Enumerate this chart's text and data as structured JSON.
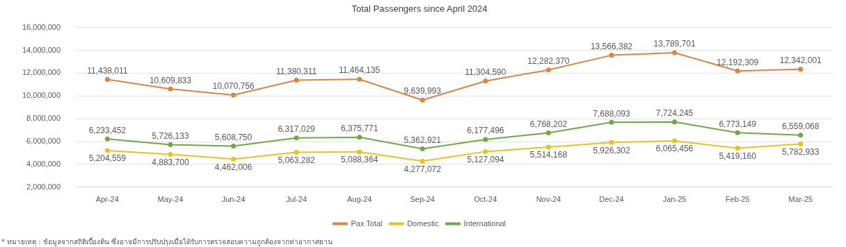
{
  "chart_data": {
    "type": "line",
    "title": "Total Passengers since April 2024",
    "categories": [
      "Apr-24",
      "May-24",
      "Jun-24",
      "Jul-24",
      "Aug-24",
      "Sep-24",
      "Oct-24",
      "Nov-24",
      "Dec-24",
      "Jan-25",
      "Feb-25",
      "Mar-25"
    ],
    "series": [
      {
        "name": "Pax Total",
        "color": "#dd8444",
        "values": [
          11438011,
          10609833,
          10070756,
          11380311,
          11464135,
          9639993,
          11304590,
          12282370,
          13566382,
          13789701,
          12192309,
          12342001
        ],
        "value_labels": [
          "11,438,011",
          "10,609,833",
          "10,070,756",
          "11,380,311",
          "11,464,135",
          "9,639,993",
          "11,304,590",
          "12,282,370",
          "13,566,382",
          "13,789,701",
          "12,192,309",
          "12,342,001"
        ]
      },
      {
        "name": "Domestic",
        "color": "#e8c21f",
        "values": [
          5204559,
          4883700,
          4462006,
          5063282,
          5088364,
          4277072,
          5127094,
          5514168,
          5926302,
          6065456,
          5419160,
          5782933
        ],
        "value_labels": [
          "5,204,559",
          "4,883,700",
          "4,462,006",
          "5,063,282",
          "5,088,364",
          "4,277,072",
          "5,127,094",
          "5,514,168",
          "5,926,302",
          "6,065,456",
          "5,419,160",
          "5,782,933"
        ]
      },
      {
        "name": "International",
        "color": "#70a845",
        "values": [
          6233452,
          5726133,
          5608750,
          6317029,
          6375771,
          5362921,
          6177496,
          6768202,
          7688093,
          7724245,
          6773149,
          6559068
        ],
        "value_labels": [
          "6,233,452",
          "5,726,133",
          "5,608,750",
          "6,317,029",
          "6,375,771",
          "5,362,921",
          "6,177,496",
          "6,768,202",
          "7,688,093",
          "7,724,245",
          "6,773,149",
          "6,559,068"
        ]
      }
    ],
    "ylim": [
      2000000,
      16000000
    ],
    "yticks": [
      {
        "value": 2000000,
        "label": "2,000,000"
      },
      {
        "value": 4000000,
        "label": "4,000,000"
      },
      {
        "value": 6000000,
        "label": "6,000,000"
      },
      {
        "value": 8000000,
        "label": "8,000,000"
      },
      {
        "value": 10000000,
        "label": "10,000,000"
      },
      {
        "value": 12000000,
        "label": "12,000,000"
      },
      {
        "value": 14000000,
        "label": "14,000,000"
      },
      {
        "value": 16000000,
        "label": "16,000,000"
      }
    ],
    "grid": "y",
    "legend": "bottom",
    "marker": "circle",
    "line_style": "solid",
    "annotations": [
      "* หมายเหตุ : ข้อมูลจากสถิติเบื้องต้น ซึ่งอาจมีการปรับปรุงเมื่อได้รับการตรวจสอบความถูกต้องจากท่าอากาศยาน"
    ]
  }
}
